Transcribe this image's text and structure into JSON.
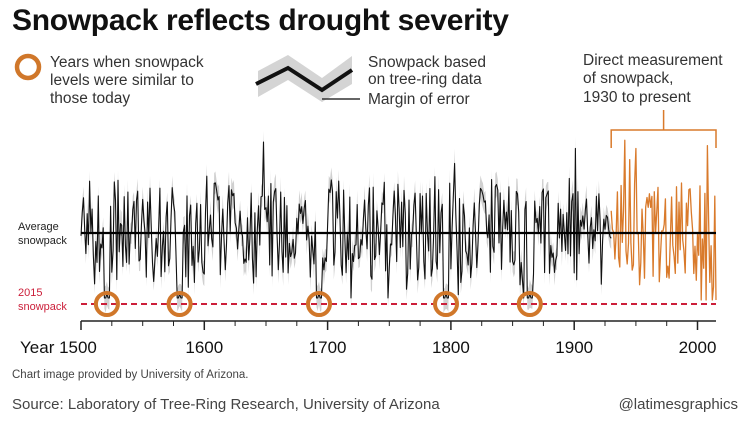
{
  "title": "Snowpack reflects drought severity",
  "legend": {
    "circle_label": [
      "Years when snowpack",
      "levels were similar to",
      "those today"
    ],
    "line_label": [
      "Snowpack based",
      "on tree-ring data"
    ],
    "band_label": "Margin of error",
    "circle_icon": "orange-ring-icon",
    "line_icon": "zigzag-band-icon"
  },
  "annotations": {
    "average_label": [
      "Average",
      "snowpack"
    ],
    "current_label": [
      "2015",
      "snowpack"
    ],
    "direct_label": [
      "Direct measurement",
      "of snowpack,",
      "1930 to present"
    ]
  },
  "credit": "Chart image provided by University of Arizona.",
  "source": "Source: Laboratory of Tree-Ring Research, University of Arizona",
  "handle": "@latimesgraphics",
  "colors": {
    "reconstruction": "#111111",
    "margin": "#d0d0d0",
    "measured": "#d97a2b",
    "circle": "#d0772a",
    "line_2015": "#cc1f3a",
    "average": "#000000"
  },
  "chart_data": {
    "type": "line",
    "x_axis": {
      "first_label": "Year 1500",
      "ticks": [
        1500,
        1600,
        1700,
        1800,
        1900,
        2000
      ],
      "tick_labels": [
        "Year 1500",
        "1600",
        "1700",
        "1800",
        "1900",
        "2000"
      ],
      "range": [
        1500,
        2015
      ]
    },
    "y_axis": {
      "ticks": [],
      "grid": false
    },
    "reference_lines": [
      {
        "label": "Average snowpack",
        "level": "average",
        "style": "solid"
      },
      {
        "label": "2015 snowpack",
        "level": "2015",
        "style": "dashed"
      }
    ],
    "series": [
      {
        "name": "Snowpack based on tree-ring data",
        "x_range": [
          1500,
          1930
        ],
        "band": "Margin of error"
      },
      {
        "name": "Direct measurement of snowpack, 1930 to present",
        "x_range": [
          1930,
          2015
        ]
      }
    ],
    "highlighted_years": [
      1521,
      1580,
      1693,
      1796,
      1864
    ],
    "measurement_start": 1930,
    "measurement_end": 2015
  }
}
